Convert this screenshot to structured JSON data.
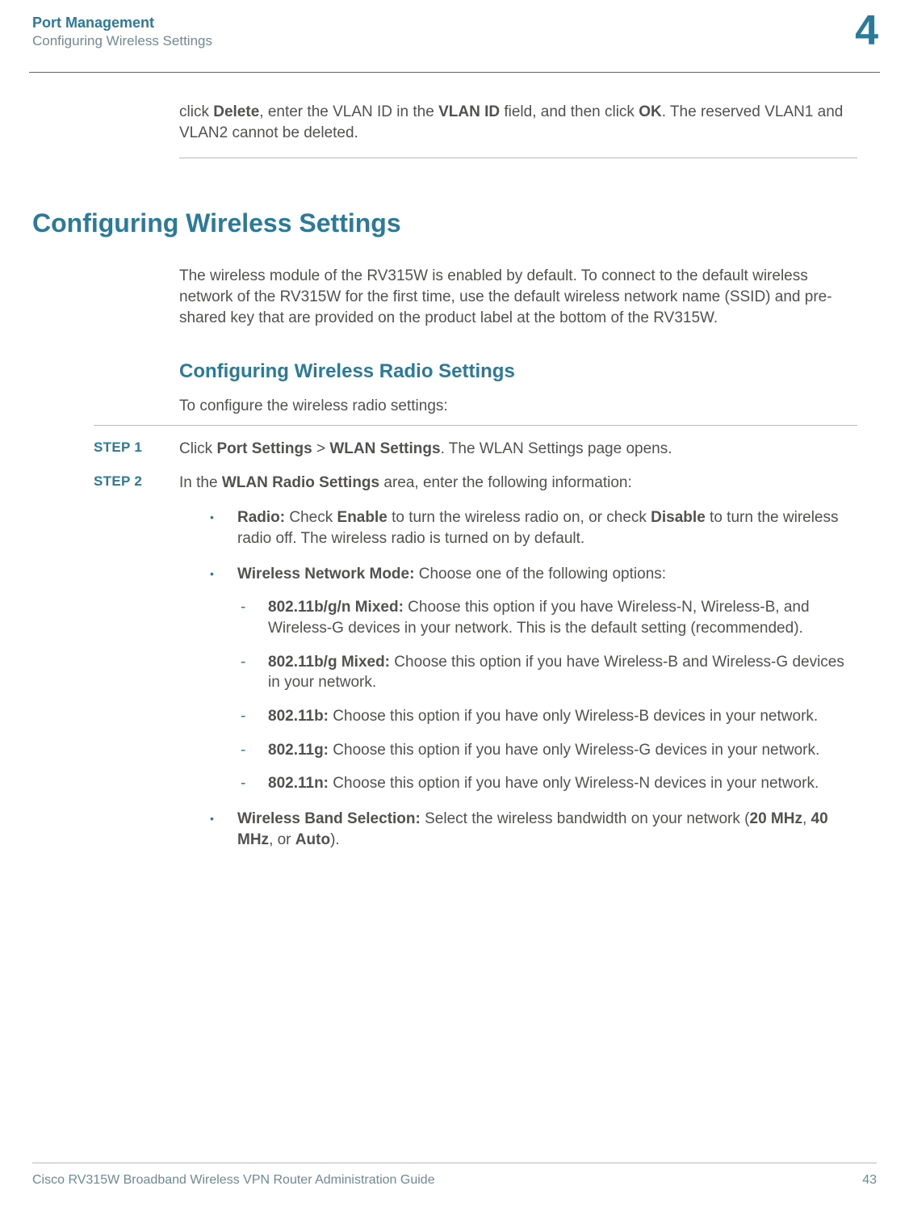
{
  "header": {
    "title": "Port Management",
    "subtitle": "Configuring Wireless Settings",
    "chapter": "4"
  },
  "intro": {
    "prefix": "click ",
    "b1": "Delete",
    "mid1": ", enter the VLAN ID in the ",
    "b2": "VLAN ID",
    "mid2": " field, and then click ",
    "b3": "OK",
    "suffix": ". The reserved VLAN1 and VLAN2 cannot be deleted."
  },
  "h1": "Configuring Wireless Settings",
  "p1": "The wireless module of the RV315W is enabled by default. To connect to the default wireless network of the RV315W for the first time, use the default wireless network name (SSID) and pre-shared key that are provided on the product label at the bottom of the RV315W.",
  "h2": "Configuring Wireless Radio Settings",
  "p2": "To configure the wireless radio settings:",
  "steps": [
    {
      "label": "STEP  1",
      "pre": "Click ",
      "b1": "Port Settings",
      "mid": " > ",
      "b2": "WLAN Settings",
      "post": ". The WLAN Settings page opens."
    },
    {
      "label": "STEP  2",
      "pre": "In the ",
      "b1": "WLAN Radio Settings",
      "post": " area, enter the following information:"
    }
  ],
  "bullets": [
    {
      "b1": "Radio:",
      "t1": " Check ",
      "b2": "Enable",
      "t2": " to turn the wireless radio on, or check ",
      "b3": "Disable",
      "t3": " to turn the wireless radio off. The wireless radio is turned on by default."
    },
    {
      "b1": "Wireless Network Mode:",
      "t1": " Choose one of the following options:"
    }
  ],
  "sub": [
    {
      "b": "802.11b/g/n Mixed:",
      "t": " Choose this option if you have Wireless-N, Wireless-B, and Wireless-G devices in your network. This is the default setting (recommended)."
    },
    {
      "b": "802.11b/g Mixed:",
      "t": " Choose this option if you have Wireless-B and Wireless-G devices in your network."
    },
    {
      "b": "802.11b:",
      "t": " Choose this option if you have only Wireless-B devices in your network."
    },
    {
      "b": "802.11g:",
      "t": " Choose this option if you have only Wireless-G devices in your network."
    },
    {
      "b": "802.11n:",
      "t": " Choose this option if you have only Wireless-N devices in your network."
    }
  ],
  "band": {
    "b1": "Wireless Band Selection:",
    "t1": " Select the wireless bandwidth on your network (",
    "b2": "20 MHz",
    "t2": ", ",
    "b3": "40 MHz",
    "t3": ", or ",
    "b4": "Auto",
    "t4": ")."
  },
  "footer": {
    "guide": "Cisco RV315W Broadband Wireless VPN Router Administration Guide",
    "page": "43"
  },
  "colors": {
    "teal": "#2b7a99",
    "body": "#52514f",
    "muted": "#6f8a94",
    "rule": "#b9b8b6"
  }
}
